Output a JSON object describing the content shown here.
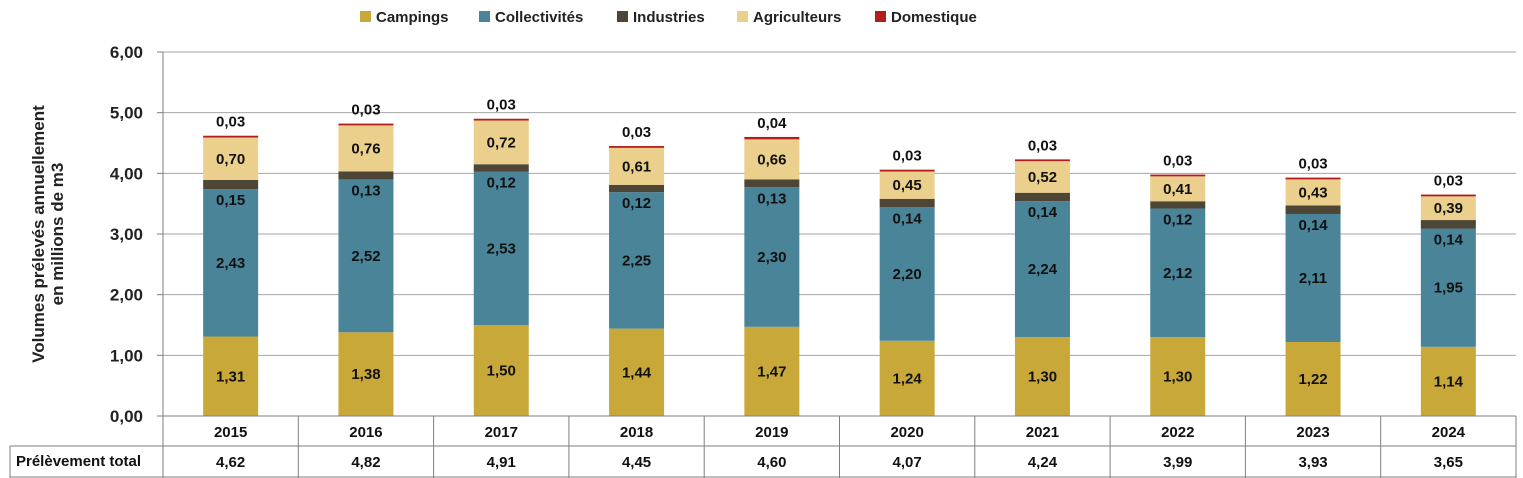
{
  "chart_data": {
    "type": "bar",
    "stacked": true,
    "title": "",
    "xlabel": "",
    "ylabel_lines": [
      "Volumes prélevés annuellement",
      "en millions de m3"
    ],
    "ylim": [
      0,
      6
    ],
    "yticks": [
      "0,00",
      "1,00",
      "2,00",
      "3,00",
      "4,00",
      "5,00",
      "6,00"
    ],
    "grid": true,
    "legend_position": "top",
    "categories": [
      "2015",
      "2016",
      "2017",
      "2018",
      "2019",
      "2020",
      "2021",
      "2022",
      "2023",
      "2024"
    ],
    "series": [
      {
        "name": "Campings",
        "color": "#c9a83a",
        "values": [
          1.31,
          1.38,
          1.5,
          1.44,
          1.47,
          1.24,
          1.3,
          1.3,
          1.22,
          1.14
        ],
        "labels": [
          "1,31",
          "1,38",
          "1,50",
          "1,44",
          "1,47",
          "1,24",
          "1,30",
          "1,30",
          "1,22",
          "1,14"
        ]
      },
      {
        "name": "Collectivités",
        "color": "#4a8498",
        "values": [
          2.43,
          2.52,
          2.53,
          2.25,
          2.3,
          2.2,
          2.24,
          2.12,
          2.11,
          1.95
        ],
        "labels": [
          "2,43",
          "2,52",
          "2,53",
          "2,25",
          "2,30",
          "2,20",
          "2,24",
          "2,12",
          "2,11",
          "1,95"
        ]
      },
      {
        "name": "Industries",
        "color": "#4d4637",
        "values": [
          0.15,
          0.13,
          0.12,
          0.12,
          0.13,
          0.14,
          0.14,
          0.12,
          0.14,
          0.14
        ],
        "labels": [
          "0,15",
          "0,13",
          "0,12",
          "0,12",
          "0,13",
          "0,14",
          "0,14",
          "0,12",
          "0,14",
          "0,14"
        ]
      },
      {
        "name": "Agriculteurs",
        "color": "#ead08c",
        "values": [
          0.7,
          0.76,
          0.72,
          0.61,
          0.66,
          0.45,
          0.52,
          0.41,
          0.43,
          0.39
        ],
        "labels": [
          "0,70",
          "0,76",
          "0,72",
          "0,61",
          "0,66",
          "0,45",
          "0,52",
          "0,41",
          "0,43",
          "0,39"
        ]
      },
      {
        "name": "Domestique",
        "color": "#b01e1e",
        "values": [
          0.03,
          0.03,
          0.03,
          0.03,
          0.04,
          0.03,
          0.03,
          0.03,
          0.03,
          0.03
        ],
        "labels": [
          "0,03",
          "0,03",
          "0,03",
          "0,03",
          "0,04",
          "0,03",
          "0,03",
          "0,03",
          "0,03",
          "0,03"
        ]
      }
    ],
    "table": {
      "row_label": "Prélèvement total",
      "values": [
        "4,62",
        "4,82",
        "4,91",
        "4,45",
        "4,60",
        "4,07",
        "4,24",
        "3,99",
        "3,93",
        "3,65"
      ]
    }
  }
}
